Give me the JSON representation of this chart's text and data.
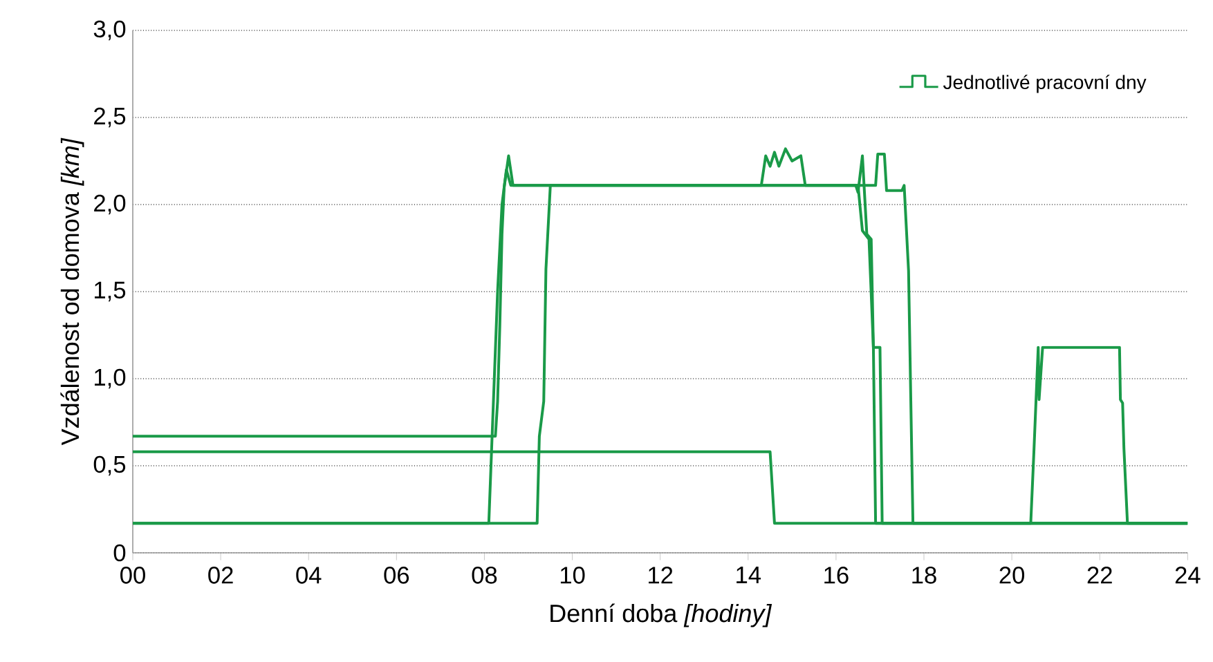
{
  "chart_data": {
    "type": "line",
    "xlabel": "Denní doba *[hodiny]*",
    "ylabel": "Vzdálenost od domova *[km]*",
    "xlim": [
      0,
      24
    ],
    "ylim": [
      0,
      3
    ],
    "xticks": [
      {
        "value": 0,
        "label": "00"
      },
      {
        "value": 2,
        "label": "02"
      },
      {
        "value": 4,
        "label": "04"
      },
      {
        "value": 6,
        "label": "06"
      },
      {
        "value": 8,
        "label": "08"
      },
      10,
      12,
      14,
      16,
      18,
      20,
      22,
      24
    ],
    "yticks": [
      0,
      {
        "value": 0.5,
        "label": "0,5"
      },
      {
        "value": 1,
        "label": "1,0"
      },
      {
        "value": 1.5,
        "label": "1,5"
      },
      {
        "value": 2,
        "label": "2,0"
      },
      {
        "value": 2.5,
        "label": "2,5"
      },
      {
        "value": 3,
        "label": "3,0"
      }
    ],
    "grid": "y",
    "legend": "top right",
    "series": [
      {
        "name": "Jednotlivé pracovní dny",
        "color": "#1a9a48",
        "x": [
          0,
          8.25,
          8.3,
          8.35,
          8.4,
          8.45,
          8.55,
          8.65,
          14.3,
          14.4,
          14.5,
          14.6,
          14.7,
          14.85,
          15.0,
          15.2,
          15.3,
          16.45,
          16.5,
          16.6,
          16.7,
          16.8,
          16.85,
          16.9,
          24
        ],
        "values": [
          0.67,
          0.67,
          0.87,
          1.3,
          1.83,
          2.1,
          2.28,
          2.11,
          2.11,
          2.28,
          2.22,
          2.3,
          2.22,
          2.32,
          2.25,
          2.28,
          2.11,
          2.11,
          2.07,
          2.28,
          1.83,
          1.8,
          1.18,
          0.17,
          0.17
        ]
      },
      {
        "color": "#1a9a48",
        "x": [
          0,
          14.5,
          14.6,
          20.43,
          20.5,
          20.6,
          20.62,
          20.7,
          22.45,
          22.47,
          22.52,
          22.55,
          22.63,
          24
        ],
        "values": [
          0.58,
          0.58,
          0.17,
          0.17,
          0.57,
          1.18,
          0.88,
          1.18,
          1.18,
          0.88,
          0.86,
          0.6,
          0.17,
          0.17
        ]
      },
      {
        "color": "#1a9a48",
        "x": [
          0,
          8.1,
          8.3,
          8.4,
          8.5,
          8.6,
          16.5,
          16.6,
          16.75,
          16.85,
          17.0,
          17.05,
          24
        ],
        "values": [
          0.17,
          0.17,
          1.5,
          2.0,
          2.2,
          2.11,
          2.11,
          1.85,
          1.8,
          1.18,
          1.18,
          0.17,
          0.17
        ]
      },
      {
        "color": "#1a9a48",
        "x": [
          0,
          9.2,
          9.25,
          9.35,
          9.4,
          9.5,
          16.9,
          16.95,
          17.1,
          17.15,
          17.5,
          17.55,
          17.65,
          17.75,
          24
        ],
        "values": [
          0.17,
          0.17,
          0.67,
          0.87,
          1.63,
          2.11,
          2.11,
          2.29,
          2.29,
          2.08,
          2.08,
          2.11,
          1.62,
          0.17,
          0.17
        ]
      }
    ]
  }
}
